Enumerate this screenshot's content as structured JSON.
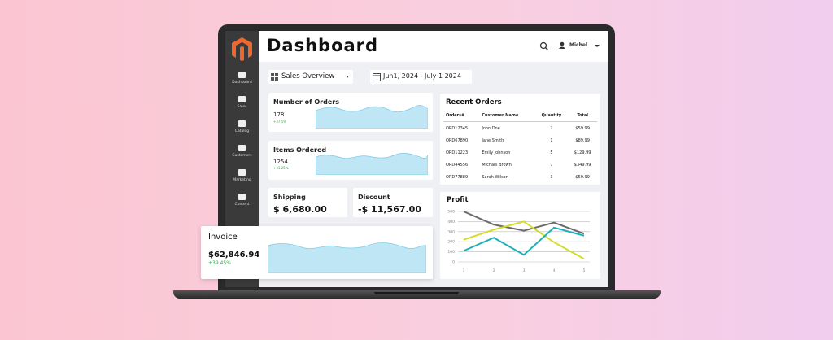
{
  "sidebar": {
    "items": [
      "Dashboard",
      "Sales",
      "Catalog",
      "Customers",
      "Marketing",
      "Content"
    ]
  },
  "header": {
    "title": "Dashboard",
    "user": "Michel"
  },
  "toolbar": {
    "view": "Sales Overview",
    "date_range": "Jun1, 2024 - July 1 2024"
  },
  "cards": {
    "orders": {
      "title": "Number of Orders",
      "value": "178",
      "change": "+37.5%"
    },
    "items": {
      "title": "Items Ordered",
      "value": "1254",
      "change": "+31.25%"
    },
    "shipping": {
      "title": "Shipping",
      "value": "$ 6,680.00"
    },
    "discount": {
      "title": "Discount",
      "value": "-$ 11,567.00"
    },
    "invoice": {
      "title": "Invoice",
      "value": "$62,846.94",
      "change": "+39.45%"
    }
  },
  "recent_orders": {
    "title": "Recent Orders",
    "columns": [
      "Orders#",
      "Customer Name",
      "Quantity",
      "Total"
    ],
    "rows": [
      [
        "ORD12345",
        "John Doe",
        "2",
        "$59.99"
      ],
      [
        "ORD67890",
        "Jane Smith",
        "1",
        "$89.99"
      ],
      [
        "ORD11223",
        "Emily Johnson",
        "5",
        "$129.99"
      ],
      [
        "ORD44556",
        "Michael Brown",
        "7",
        "$349.99"
      ],
      [
        "ORD77889",
        "Sarah Wilson",
        "3",
        "$59.99"
      ]
    ]
  },
  "chart_data": {
    "type": "line",
    "title": "Profit",
    "categories": [
      "1",
      "2",
      "3",
      "4",
      "5"
    ],
    "series": [
      {
        "color": "#6b6b6b",
        "values": [
          500,
          370,
          310,
          390,
          280
        ]
      },
      {
        "color": "#d4dc2a",
        "values": [
          220,
          320,
          400,
          195,
          30
        ]
      },
      {
        "color": "#1bb0b8",
        "values": [
          110,
          240,
          70,
          340,
          260
        ]
      }
    ],
    "ylim": [
      0,
      500
    ],
    "yticks": [
      0,
      100,
      200,
      300,
      400,
      500
    ],
    "grid": true
  }
}
